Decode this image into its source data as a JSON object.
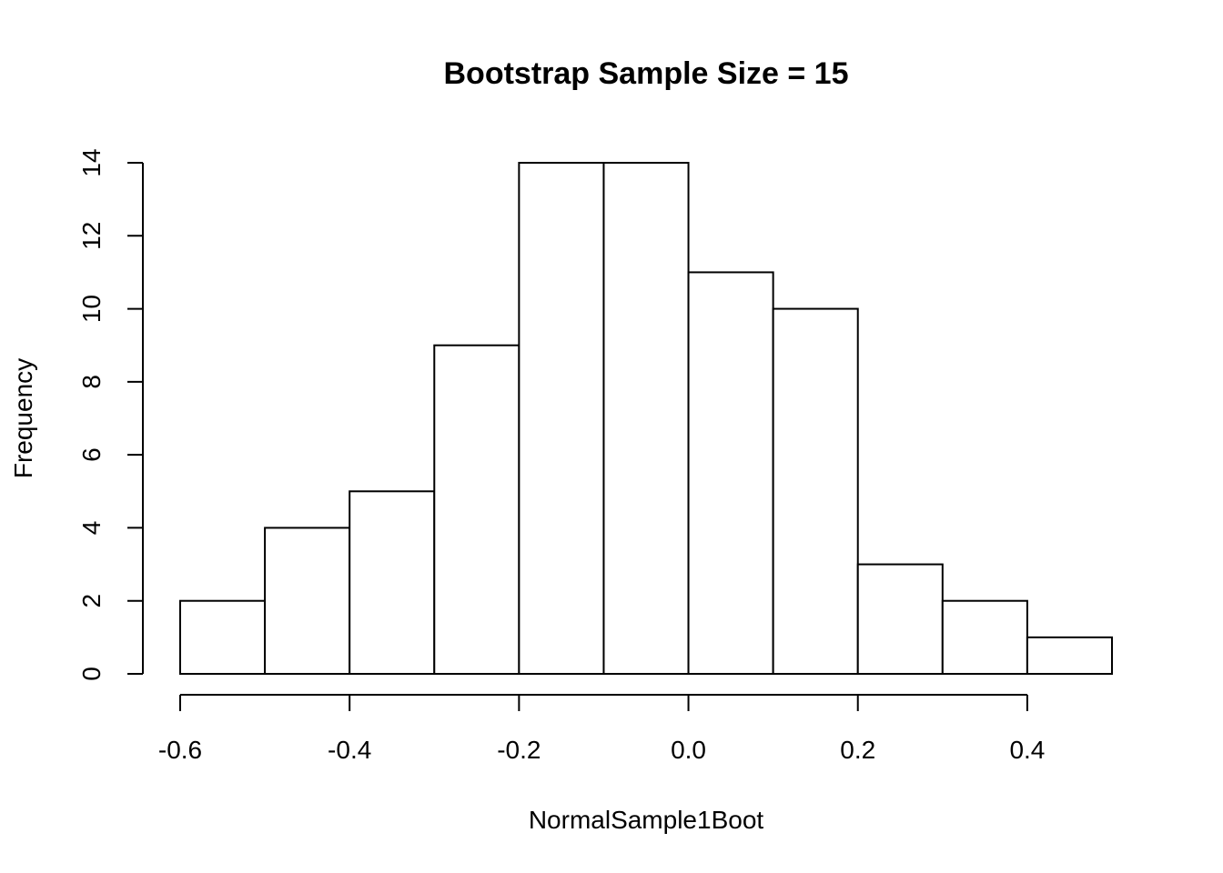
{
  "chart_data": {
    "type": "bar",
    "title": "Bootstrap Sample Size =  15",
    "xlabel": "NormalSample1Boot",
    "ylabel": "Frequency",
    "bins": [
      {
        "from": -0.6,
        "to": -0.5,
        "count": 2
      },
      {
        "from": -0.5,
        "to": -0.4,
        "count": 4
      },
      {
        "from": -0.4,
        "to": -0.3,
        "count": 5
      },
      {
        "from": -0.3,
        "to": -0.2,
        "count": 9
      },
      {
        "from": -0.2,
        "to": -0.1,
        "count": 14
      },
      {
        "from": -0.1,
        "to": 0.0,
        "count": 14
      },
      {
        "from": 0.0,
        "to": 0.1,
        "count": 11
      },
      {
        "from": 0.1,
        "to": 0.2,
        "count": 10
      },
      {
        "from": 0.2,
        "to": 0.3,
        "count": 3
      },
      {
        "from": 0.3,
        "to": 0.4,
        "count": 2
      },
      {
        "from": 0.4,
        "to": 0.5,
        "count": 1
      }
    ],
    "x_ticks": [
      -0.6,
      -0.4,
      -0.2,
      0.0,
      0.2,
      0.4
    ],
    "x_tick_labels": [
      "-0.6",
      "-0.4",
      "-0.2",
      "0.0",
      "0.2",
      "0.4"
    ],
    "y_ticks": [
      0,
      2,
      4,
      6,
      8,
      10,
      12,
      14
    ],
    "y_tick_labels": [
      "0",
      "2",
      "4",
      "6",
      "8",
      "10",
      "12",
      "14"
    ],
    "xlim": [
      -0.6,
      0.5
    ],
    "ylim": [
      0,
      14
    ],
    "grid": false,
    "colors": {
      "bar_fill": "#ffffff",
      "bar_stroke": "#000000"
    }
  }
}
